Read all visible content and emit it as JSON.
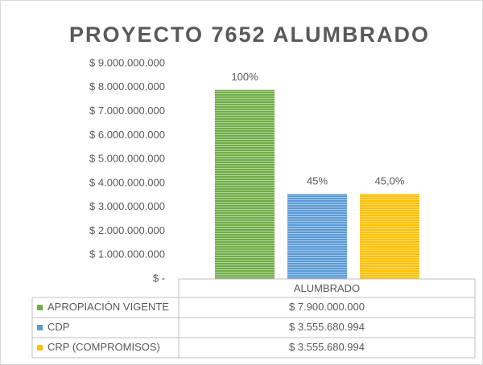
{
  "chart_data": {
    "type": "bar",
    "title": "PROYECTO 7652 ALUMBRADO",
    "categories": [
      "ALUMBRADO"
    ],
    "series": [
      {
        "name": "APROPIACIÓN VIGENTE",
        "color": "#70ad47",
        "values": [
          7900000000
        ],
        "value_labels": [
          "$ 7.900.000.000"
        ],
        "data_labels": [
          "100%"
        ]
      },
      {
        "name": "CDP",
        "color": "#5b9bd5",
        "values": [
          3555680994
        ],
        "value_labels": [
          "$ 3.555.680.994"
        ],
        "data_labels": [
          "45%"
        ]
      },
      {
        "name": "CRP (COMPROMISOS)",
        "color": "#ffc000",
        "values": [
          3555680994
        ],
        "value_labels": [
          "$ 3.555.680.994"
        ],
        "data_labels": [
          "45,0%"
        ]
      }
    ],
    "ylim": [
      0,
      9000000000
    ],
    "yticks": [
      {
        "value": 0,
        "label": "$ -"
      },
      {
        "value": 1000000000,
        "label": "$ 1.000.000.000"
      },
      {
        "value": 2000000000,
        "label": "$ 2.000.000.000"
      },
      {
        "value": 3000000000,
        "label": "$ 3.000.000.000"
      },
      {
        "value": 4000000000,
        "label": "$ 4.000.000.000"
      },
      {
        "value": 5000000000,
        "label": "$ 5.000.000.000"
      },
      {
        "value": 6000000000,
        "label": "$ 6.000.000.000"
      },
      {
        "value": 7000000000,
        "label": "$ 7.000.000.000"
      },
      {
        "value": 8000000000,
        "label": "$ 8.000.000.000"
      },
      {
        "value": 9000000000,
        "label": "$ 9.000.000.000"
      }
    ],
    "grid": false,
    "data_table": true
  }
}
